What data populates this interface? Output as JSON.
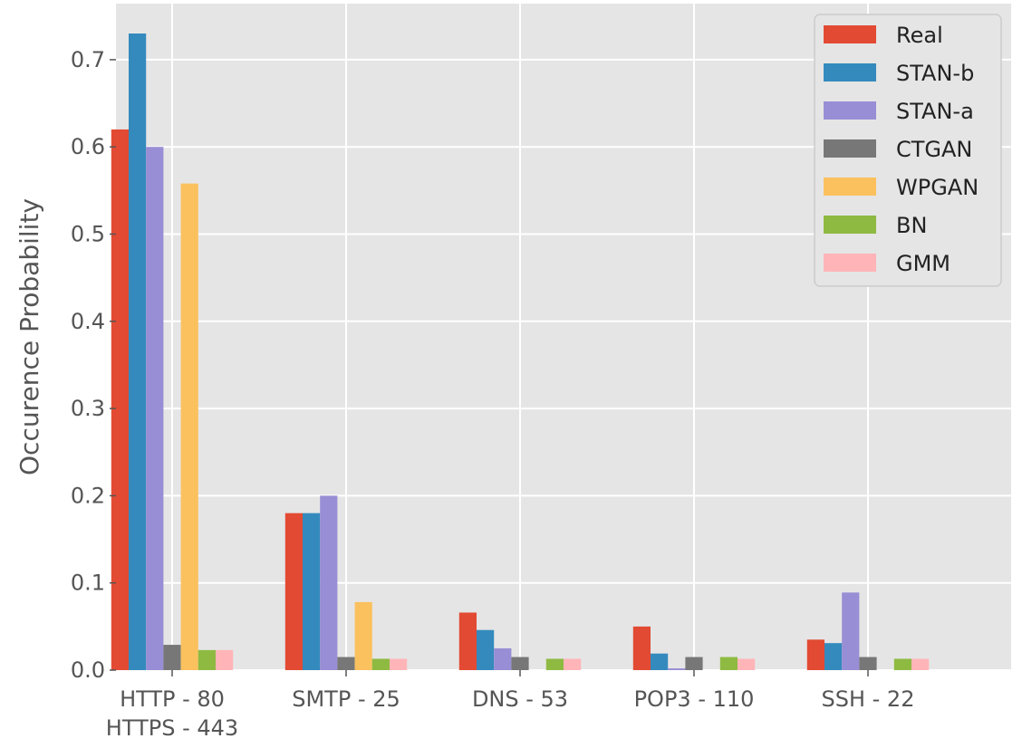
{
  "chart_data": {
    "type": "bar",
    "title": "",
    "xlabel": "",
    "ylabel": "Occurence Probability",
    "categories": [
      "HTTP - 80\nHTTPS - 443",
      "SMTP - 25",
      "DNS - 53",
      "POP3 - 110",
      "SSH - 22"
    ],
    "ylim": [
      0,
      0.76
    ],
    "yticks": [
      0.0,
      0.1,
      0.2,
      0.3,
      0.4,
      0.5,
      0.6,
      0.7
    ],
    "ytick_labels": [
      "0.0",
      "0.1",
      "0.2",
      "0.3",
      "0.4",
      "0.5",
      "0.6",
      "0.7"
    ],
    "grid": true,
    "legend_position": "top-right",
    "series": [
      {
        "name": "Real",
        "color": "#E24A33",
        "values": [
          0.62,
          0.18,
          0.066,
          0.05,
          0.035
        ]
      },
      {
        "name": "STAN-b",
        "color": "#348ABD",
        "values": [
          0.73,
          0.18,
          0.046,
          0.019,
          0.031
        ]
      },
      {
        "name": "STAN-a",
        "color": "#988ED5",
        "values": [
          0.6,
          0.2,
          0.025,
          0.002,
          0.089
        ]
      },
      {
        "name": "CTGAN",
        "color": "#777777",
        "values": [
          0.029,
          0.015,
          0.015,
          0.015,
          0.015
        ]
      },
      {
        "name": "WPGAN",
        "color": "#FBC15E",
        "values": [
          0.558,
          0.078,
          0.0,
          0.0,
          0.0
        ]
      },
      {
        "name": "BN",
        "color": "#8EBA42",
        "values": [
          0.023,
          0.013,
          0.013,
          0.015,
          0.013
        ]
      },
      {
        "name": "GMM",
        "color": "#FFB5B8",
        "values": [
          0.023,
          0.013,
          0.013,
          0.013,
          0.013
        ]
      }
    ]
  }
}
